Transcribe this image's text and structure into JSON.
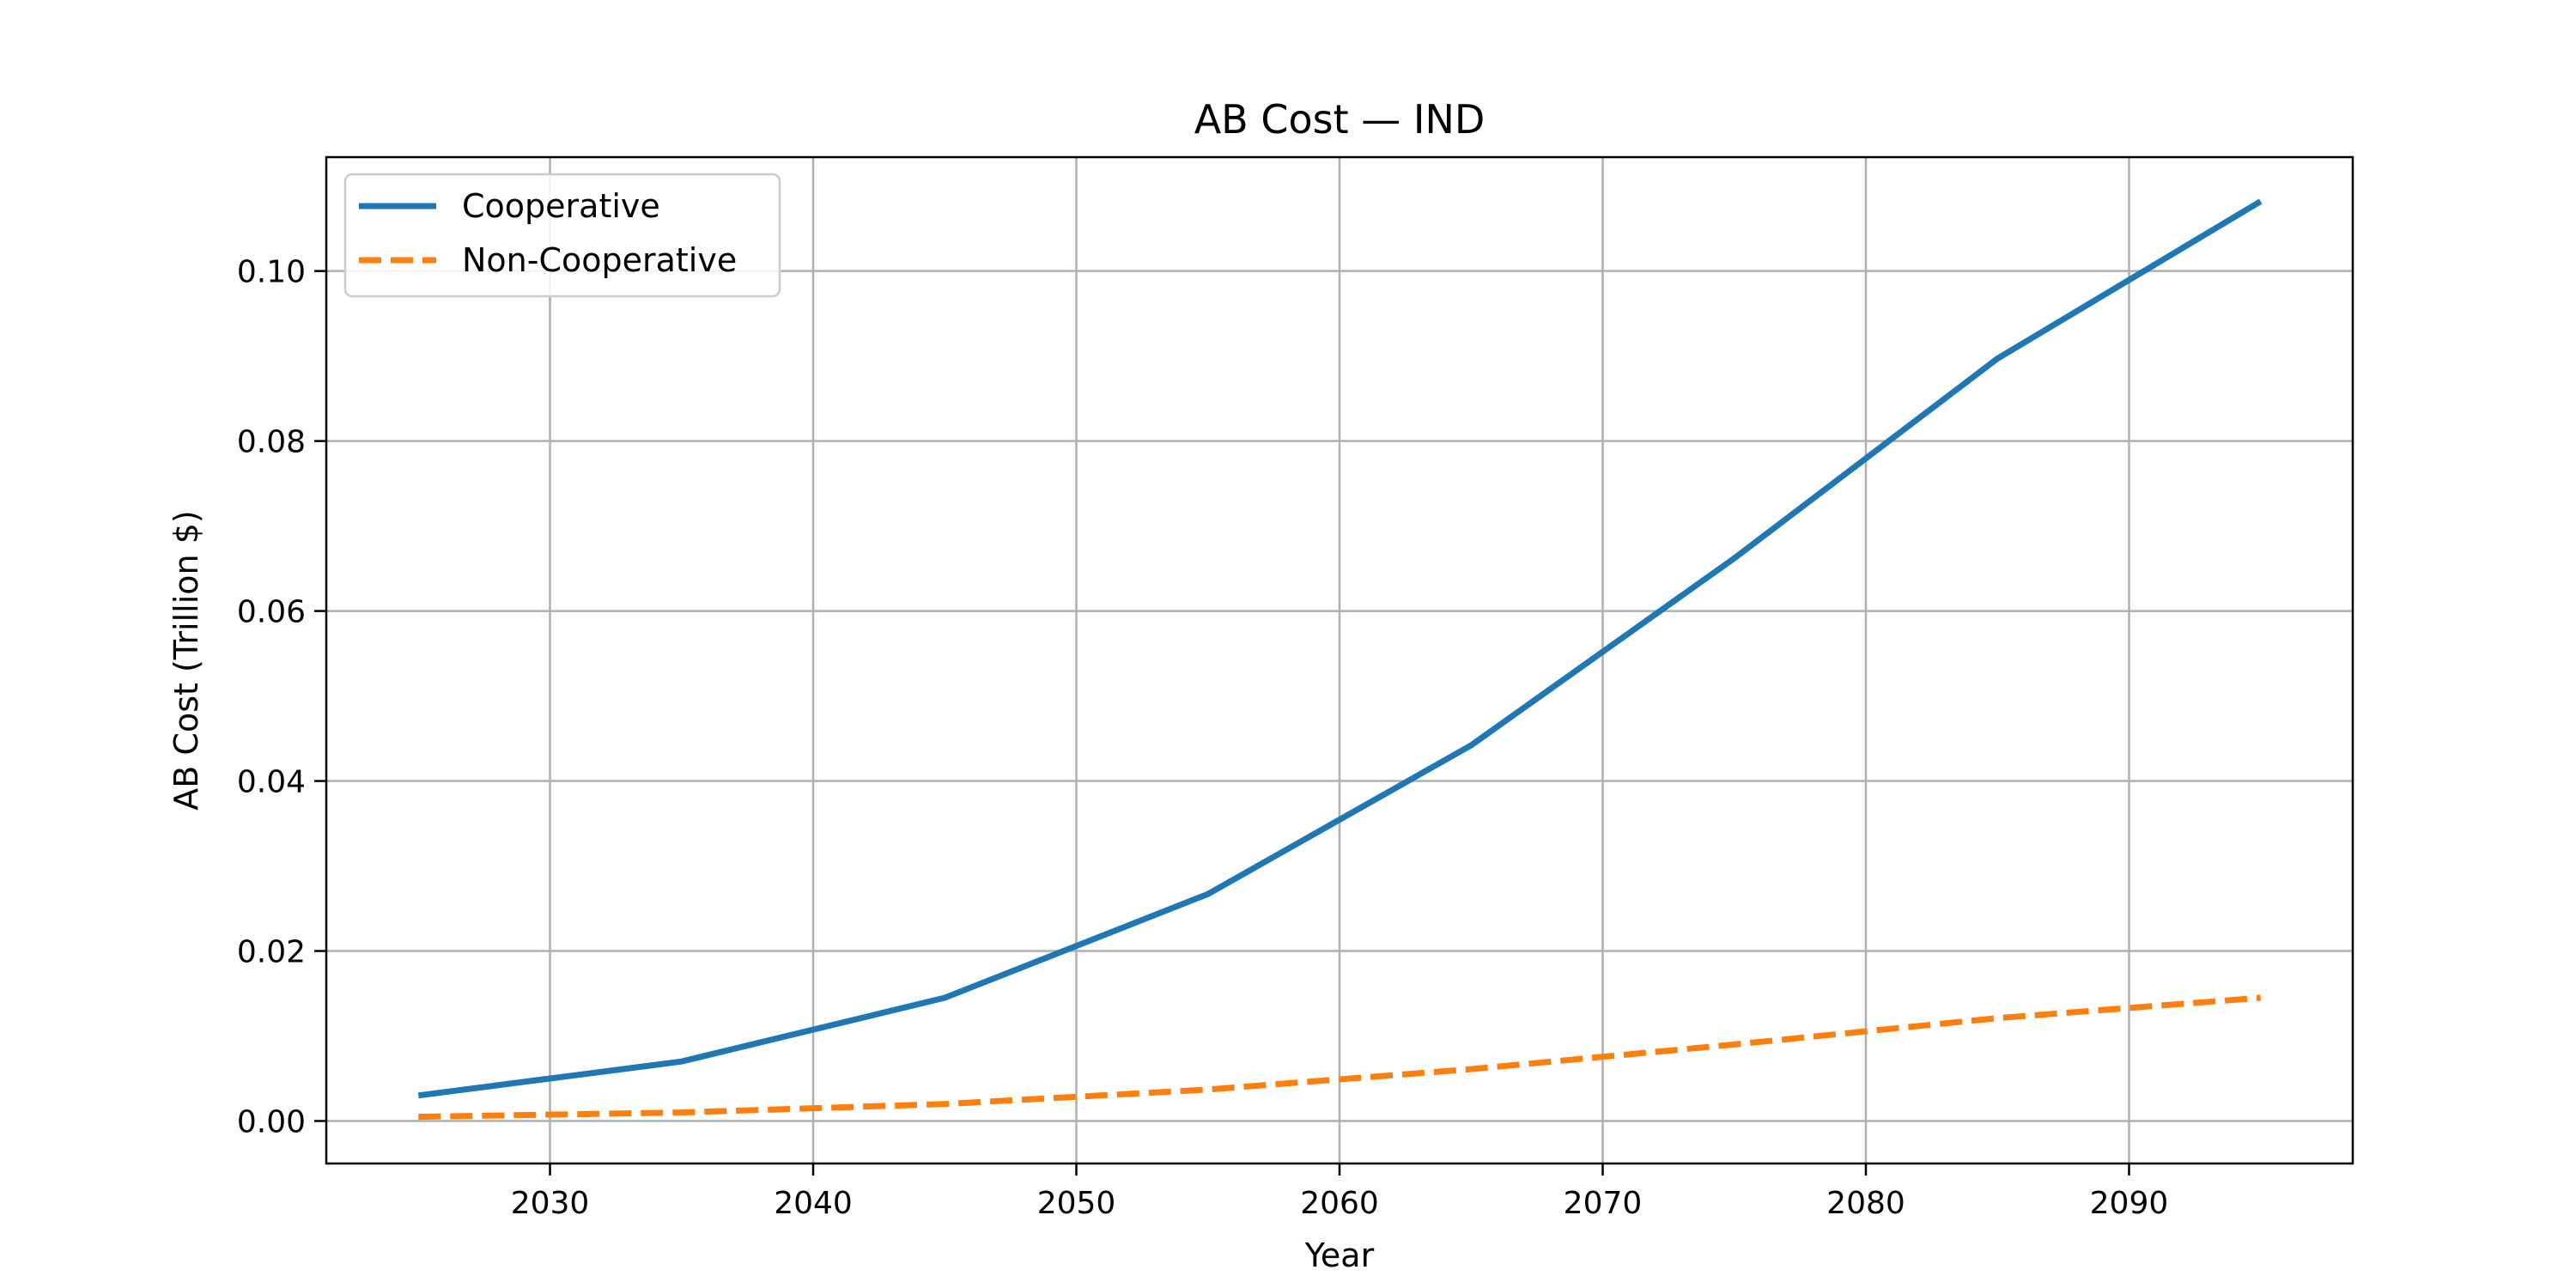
{
  "chart_data": {
    "type": "line",
    "title": "AB Cost — IND",
    "xlabel": "Year",
    "ylabel": "AB Cost (Trillion $)",
    "xlim": [
      2021.5,
      2098.5
    ],
    "ylim": [
      -0.005,
      0.1134
    ],
    "xticks": [
      "2030",
      "2040",
      "2050",
      "2060",
      "2070",
      "2080",
      "2090"
    ],
    "yticks": [
      "0.00",
      "0.02",
      "0.04",
      "0.06",
      "0.08",
      "0.10"
    ],
    "grid": true,
    "legend_position": "upper-left",
    "x": [
      2025,
      2035,
      2045,
      2055,
      2065,
      2075,
      2085,
      2095
    ],
    "series": [
      {
        "name": "Cooperative",
        "style": "solid",
        "color": "#1f77b4",
        "values": [
          0.003,
          0.007,
          0.0145,
          0.0267,
          0.0442,
          0.0662,
          0.0897,
          0.1082
        ]
      },
      {
        "name": "Non-Cooperative",
        "style": "dashed",
        "color": "#ff7f0e",
        "values": [
          0.0005,
          0.001,
          0.002,
          0.0037,
          0.0061,
          0.009,
          0.0121,
          0.0145
        ]
      }
    ]
  }
}
